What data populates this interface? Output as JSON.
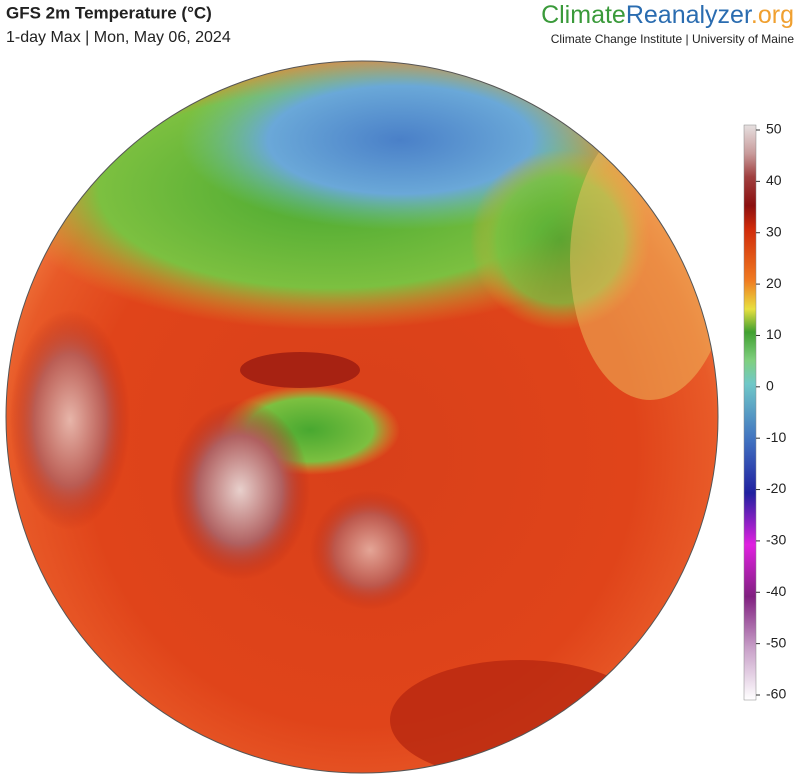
{
  "header": {
    "title": "GFS 2m Temperature (°C)",
    "subtitle": "1-day Max | Mon, May 06, 2024"
  },
  "brand": {
    "parts": [
      "Climate",
      "Reanalyzer",
      ".org"
    ],
    "tagline": "Climate Change Institute | University of Maine"
  },
  "colorbar": {
    "lim": [
      -60,
      50
    ],
    "ticks": [
      50,
      40,
      30,
      20,
      10,
      0,
      -10,
      -20,
      -30,
      -40,
      -50,
      -60
    ]
  }
}
